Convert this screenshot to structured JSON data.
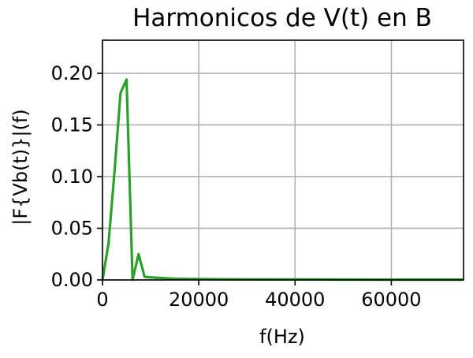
{
  "chart_data": {
    "type": "line",
    "title": "Harmonicos de V(t) en B",
    "xlabel": "f(Hz)",
    "ylabel": "|F{Vb(t)}|(f)",
    "xlim": [
      0,
      75000
    ],
    "ylim": [
      0,
      0.232
    ],
    "xticks": [
      0,
      20000,
      40000,
      60000
    ],
    "xtick_labels": [
      "0",
      "20000",
      "40000",
      "60000"
    ],
    "yticks": [
      0,
      0.05,
      0.1,
      0.15,
      0.2
    ],
    "ytick_labels": [
      "0.00",
      "0.05",
      "0.10",
      "0.15",
      "0.20"
    ],
    "grid": true,
    "legend": "none",
    "series": [
      {
        "color": "#2ca02c",
        "x": [
          0,
          1250,
          2500,
          3750,
          5000,
          6250,
          7500,
          8750,
          10000,
          12500,
          15000,
          20000,
          25000,
          30000,
          40000,
          50000,
          60000,
          75000
        ],
        "y": [
          0.0,
          0.035,
          0.105,
          0.181,
          0.194,
          0.0,
          0.025,
          0.003,
          0.0025,
          0.0018,
          0.0012,
          0.0009,
          0.0007,
          0.0006,
          0.0005,
          0.0004,
          0.0003,
          0.0003
        ]
      }
    ]
  }
}
